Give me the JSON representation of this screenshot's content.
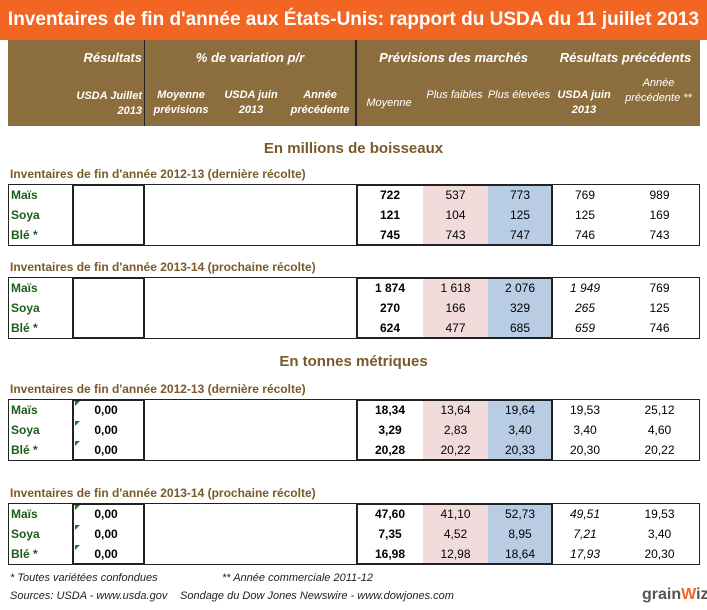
{
  "title": "Inventaires de fin d'année aux États-Unis: rapport du USDA du 11 juillet 2013",
  "header": {
    "groups": [
      "Résultats",
      "% de variation p/r",
      "Prévisions des marchés",
      "Résultats précédents"
    ],
    "columns": [
      "USDA Juillet 2013",
      "Moyenne prévisions",
      "USDA juin 2013",
      "Année précédente",
      "Moyenne",
      "Plus faibles",
      "Plus élevées",
      "USDA juin 2013",
      "Année précédente **"
    ]
  },
  "sections": [
    {
      "title": "En millions de boisseaux",
      "tables": [
        {
          "subtitle": "Inventaires de fin d'année 2012-13 (dernière récolte)",
          "italic_juin": false,
          "rows": [
            {
              "label": "Maïs",
              "result": "",
              "moyenne": "722",
              "faibles": "537",
              "elevees": "773",
              "juin": "769",
              "prec": "989"
            },
            {
              "label": "Soya",
              "result": "",
              "moyenne": "121",
              "faibles": "104",
              "elevees": "125",
              "juin": "125",
              "prec": "169"
            },
            {
              "label": "Blé *",
              "result": "",
              "moyenne": "745",
              "faibles": "743",
              "elevees": "747",
              "juin": "746",
              "prec": "743"
            }
          ]
        },
        {
          "subtitle": "Inventaires de fin d'année 2013-14 (prochaine récolte)",
          "italic_juin": true,
          "rows": [
            {
              "label": "Maïs",
              "result": "",
              "moyenne": "1 874",
              "faibles": "1 618",
              "elevees": "2 076",
              "juin": "1 949",
              "prec": "769"
            },
            {
              "label": "Soya",
              "result": "",
              "moyenne": "270",
              "faibles": "166",
              "elevees": "329",
              "juin": "265",
              "prec": "125"
            },
            {
              "label": "Blé *",
              "result": "",
              "moyenne": "624",
              "faibles": "477",
              "elevees": "685",
              "juin": "659",
              "prec": "746"
            }
          ]
        }
      ]
    },
    {
      "title": "En tonnes métriques",
      "tables": [
        {
          "subtitle": "Inventaires de fin d'année 2012-13 (dernière récolte)",
          "italic_juin": false,
          "rows": [
            {
              "label": "Maïs",
              "result": "0,00",
              "moyenne": "18,34",
              "faibles": "13,64",
              "elevees": "19,64",
              "juin": "19,53",
              "prec": "25,12"
            },
            {
              "label": "Soya",
              "result": "0,00",
              "moyenne": "3,29",
              "faibles": "2,83",
              "elevees": "3,40",
              "juin": "3,40",
              "prec": "4,60"
            },
            {
              "label": "Blé *",
              "result": "0,00",
              "moyenne": "20,28",
              "faibles": "20,22",
              "elevees": "20,33",
              "juin": "20,30",
              "prec": "20,22"
            }
          ]
        },
        {
          "subtitle": "Inventaires de fin d'année 2013-14 (prochaine récolte)",
          "italic_juin": true,
          "rows": [
            {
              "label": "Maïs",
              "result": "0,00",
              "moyenne": "47,60",
              "faibles": "41,10",
              "elevees": "52,73",
              "juin": "49,51",
              "prec": "19,53"
            },
            {
              "label": "Soya",
              "result": "0,00",
              "moyenne": "7,35",
              "faibles": "4,52",
              "elevees": "8,95",
              "juin": "7,21",
              "prec": "3,40"
            },
            {
              "label": "Blé *",
              "result": "0,00",
              "moyenne": "16,98",
              "faibles": "12,98",
              "elevees": "18,64",
              "juin": "17,93",
              "prec": "20,30"
            }
          ]
        }
      ]
    }
  ],
  "footer": {
    "note1": "* Toutes variétées confondues",
    "note2": "** Année commerciale 2011-12",
    "sources": "Sources: USDA - www.usda.gov",
    "survey": "Sondage du Dow Jones Newswire  - www.dowjones.com",
    "logo": "grainwiz"
  }
}
